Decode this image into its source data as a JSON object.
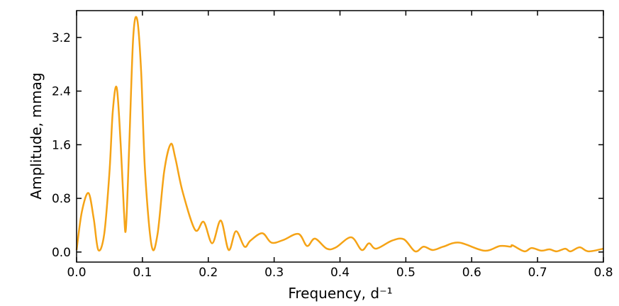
{
  "chart_data": {
    "type": "line",
    "x_label": "Frequency, d⁻¹",
    "y_label": "Amplitude, mmag",
    "x": [
      0,
      0.008,
      0.018,
      0.026,
      0.033,
      0.042,
      0.05,
      0.055,
      0.061,
      0.067,
      0.072,
      0.075,
      0.08,
      0.086,
      0.092,
      0.098,
      0.104,
      0.114,
      0.123,
      0.133,
      0.143,
      0.15,
      0.161,
      0.18,
      0.193,
      0.206,
      0.219,
      0.231,
      0.242,
      0.255,
      0.264,
      0.282,
      0.296,
      0.314,
      0.337,
      0.35,
      0.362,
      0.38,
      0.394,
      0.417,
      0.433,
      0.444,
      0.455,
      0.479,
      0.497,
      0.514,
      0.527,
      0.541,
      0.557,
      0.581,
      0.619,
      0.643,
      0.659,
      0.662,
      0.68,
      0.691,
      0.706,
      0.718,
      0.729,
      0.742,
      0.75,
      0.764,
      0.777,
      0.8
    ],
    "series": [
      {
        "name": "Amplitude",
        "color": "#f5a316",
        "values": [
          0.03,
          0.6,
          0.88,
          0.5,
          0.03,
          0.27,
          1.2,
          2.1,
          2.45,
          1.6,
          0.6,
          0.36,
          1.6,
          3.2,
          3.47,
          2.7,
          1.2,
          0.09,
          0.27,
          1.2,
          1.61,
          1.4,
          0.9,
          0.33,
          0.45,
          0.13,
          0.47,
          0.03,
          0.31,
          0.08,
          0.17,
          0.28,
          0.14,
          0.18,
          0.27,
          0.09,
          0.2,
          0.05,
          0.07,
          0.22,
          0.03,
          0.13,
          0.05,
          0.17,
          0.19,
          0.01,
          0.08,
          0.03,
          0.08,
          0.14,
          0.02,
          0.09,
          0.08,
          0.1,
          0.01,
          0.06,
          0.02,
          0.04,
          0.01,
          0.05,
          0.01,
          0.07,
          0.01,
          0.05
        ]
      }
    ],
    "xlim": [
      0,
      0.8
    ],
    "ylim": [
      -0.15,
      3.6
    ],
    "xticks": [
      {
        "value": 0,
        "label": "0.0"
      },
      0.1,
      0.2,
      0.3,
      0.4,
      0.5,
      0.6,
      0.7,
      0.8
    ],
    "yticks": [
      {
        "value": 0,
        "label": "0.0"
      },
      0.8,
      1.6,
      2.4,
      3.2
    ]
  }
}
